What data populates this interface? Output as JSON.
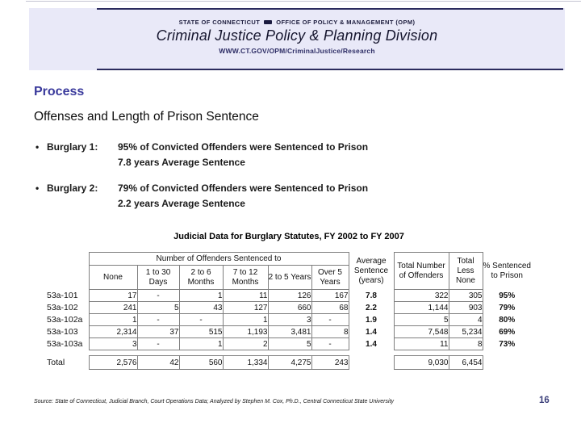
{
  "header": {
    "line1_left": "STATE OF CONNECTICUT",
    "line1_right": "OFFICE OF POLICY & MANAGEMENT (OPM)",
    "title": "Criminal Justice Policy & Planning Division",
    "url": "WWW.CT.GOV/OPM/CriminalJustice/Research"
  },
  "section": {
    "heading": "Process",
    "subheading": "Offenses and Length of Prison Sentence"
  },
  "bullets": [
    {
      "label": "Burglary 1:",
      "line1": "95% of Convicted Offenders were Sentenced to Prison",
      "line2": "7.8 years Average Sentence"
    },
    {
      "label": "Burglary 2:",
      "line1": "79% of Convicted Offenders were Sentenced to Prison",
      "line2": "2.2 years Average Sentence"
    }
  ],
  "table": {
    "title": "Judicial Data for Burglary Statutes, FY 2002 to FY 2007",
    "group_header": "Number of Offenders Sentenced to",
    "columns": [
      "None",
      "1 to 30 Days",
      "2 to 6 Months",
      "7 to 12 Months",
      "2 to 5 Years",
      "Over 5 Years"
    ],
    "avg_header": "Average Sentence (years)",
    "total_header": "Total Number of Offenders",
    "less_header": "Total Less None",
    "pct_header": "% Sentenced to Prison",
    "rows": [
      {
        "label": "53a-101",
        "cells": [
          "17",
          "-",
          "1",
          "11",
          "126",
          "167"
        ],
        "avg": "7.8",
        "total": "322",
        "less": "305",
        "pct": "95%"
      },
      {
        "label": "53a-102",
        "cells": [
          "241",
          "5",
          "43",
          "127",
          "660",
          "68"
        ],
        "avg": "2.2",
        "total": "1,144",
        "less": "903",
        "pct": "79%"
      },
      {
        "label": "53a-102a",
        "cells": [
          "1",
          "-",
          "-",
          "1",
          "3",
          "-"
        ],
        "avg": "1.9",
        "total": "5",
        "less": "4",
        "pct": "80%"
      },
      {
        "label": "53a-103",
        "cells": [
          "2,314",
          "37",
          "515",
          "1,193",
          "3,481",
          "8"
        ],
        "avg": "1.4",
        "total": "7,548",
        "less": "5,234",
        "pct": "69%"
      },
      {
        "label": "53a-103a",
        "cells": [
          "3",
          "-",
          "1",
          "2",
          "5",
          "-"
        ],
        "avg": "1.4",
        "total": "11",
        "less": "8",
        "pct": "73%"
      }
    ],
    "total_row": {
      "label": "Total",
      "cells": [
        "2,576",
        "42",
        "560",
        "1,334",
        "4,275",
        "243"
      ],
      "avg": "",
      "total": "9,030",
      "less": "6,454",
      "pct": ""
    }
  },
  "footer": {
    "source": "Source: State of Connecticut, Judicial Branch, Court Operations Data; Analyzed by Stephen M. Cox, Ph.D., Central Connecticut State University",
    "page_number": "16"
  },
  "colors": {
    "band_background": "#e9e9f8",
    "rule_navy": "#2b2b5e",
    "heading_blue": "#3a3a9c",
    "page_number_blue": "#3b3f7a",
    "table_border_gray": "#7f7f7f"
  }
}
